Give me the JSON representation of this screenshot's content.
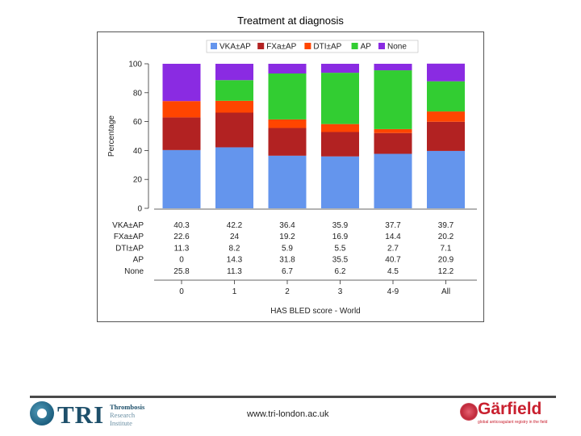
{
  "slide": {
    "title": "Treatment at diagnosis"
  },
  "chart_data": {
    "type": "stacked-bar",
    "ylabel": "Percentage",
    "xlabel": "HAS BLED score - World",
    "ylim": [
      0,
      100
    ],
    "yticks": [
      0,
      20,
      40,
      60,
      80,
      100
    ],
    "categories": [
      "0",
      "1",
      "2",
      "3",
      "4-9",
      "All"
    ],
    "legend_position": "top",
    "series": [
      {
        "name": "VKA±AP",
        "color": "#6495ed",
        "values": [
          40.3,
          42.2,
          36.4,
          35.9,
          37.7,
          39.7
        ],
        "labels": [
          "40.3",
          "42.2",
          "36.4",
          "35.9",
          "37.7",
          "39.7"
        ]
      },
      {
        "name": "FXa±AP",
        "color": "#b22222",
        "values": [
          22.6,
          24,
          19.2,
          16.9,
          14.4,
          20.2
        ],
        "labels": [
          "22.6",
          "24",
          "19.2",
          "16.9",
          "14.4",
          "20.2"
        ]
      },
      {
        "name": "DTI±AP",
        "color": "#ff4500",
        "values": [
          11.3,
          8.2,
          5.9,
          5.5,
          2.7,
          7.1
        ],
        "labels": [
          "11.3",
          "8.2",
          "5.9",
          "5.5",
          "2.7",
          "7.1"
        ]
      },
      {
        "name": "AP",
        "color": "#32cd32",
        "values": [
          0,
          14.3,
          31.8,
          35.5,
          40.7,
          20.9
        ],
        "labels": [
          "0",
          "14.3",
          "31.8",
          "35.5",
          "40.7",
          "20.9"
        ]
      },
      {
        "name": "None",
        "color": "#8a2be2",
        "values": [
          25.8,
          11.3,
          6.7,
          6.2,
          4.5,
          12.2
        ],
        "labels": [
          "25.8",
          "11.3",
          "6.7",
          "6.2",
          "4.5",
          "12.2"
        ]
      }
    ]
  },
  "footer": {
    "tri_name": "TRI",
    "tri_sub": [
      "Thrombosis",
      "Research",
      "Institute"
    ],
    "url": "www.tri-london.ac.uk",
    "garfield_name": "Gärfield",
    "garfield_tagline": "global anticoagulant registry in the field"
  }
}
